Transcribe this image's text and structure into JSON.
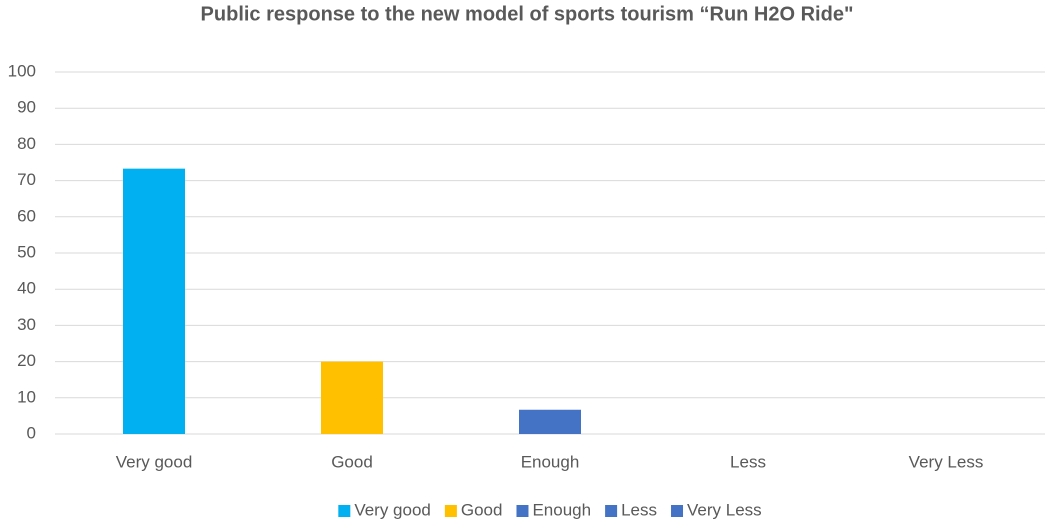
{
  "chart_data": {
    "type": "bar",
    "title": "Public response to the new model of sports tourism “Run H2O Ride\"",
    "categories": [
      "Very good",
      "Good",
      "Enough",
      "Less",
      "Very Less"
    ],
    "values": [
      73.3,
      20,
      6.7,
      0,
      0
    ],
    "colors": [
      "#00b0f0",
      "#ffc000",
      "#4472c4",
      "#4472c4",
      "#4472c4"
    ],
    "ylim": [
      0,
      100
    ],
    "yticks": [
      0,
      10,
      20,
      30,
      40,
      50,
      60,
      70,
      80,
      90,
      100
    ],
    "grid": true,
    "legend": "bottom"
  }
}
